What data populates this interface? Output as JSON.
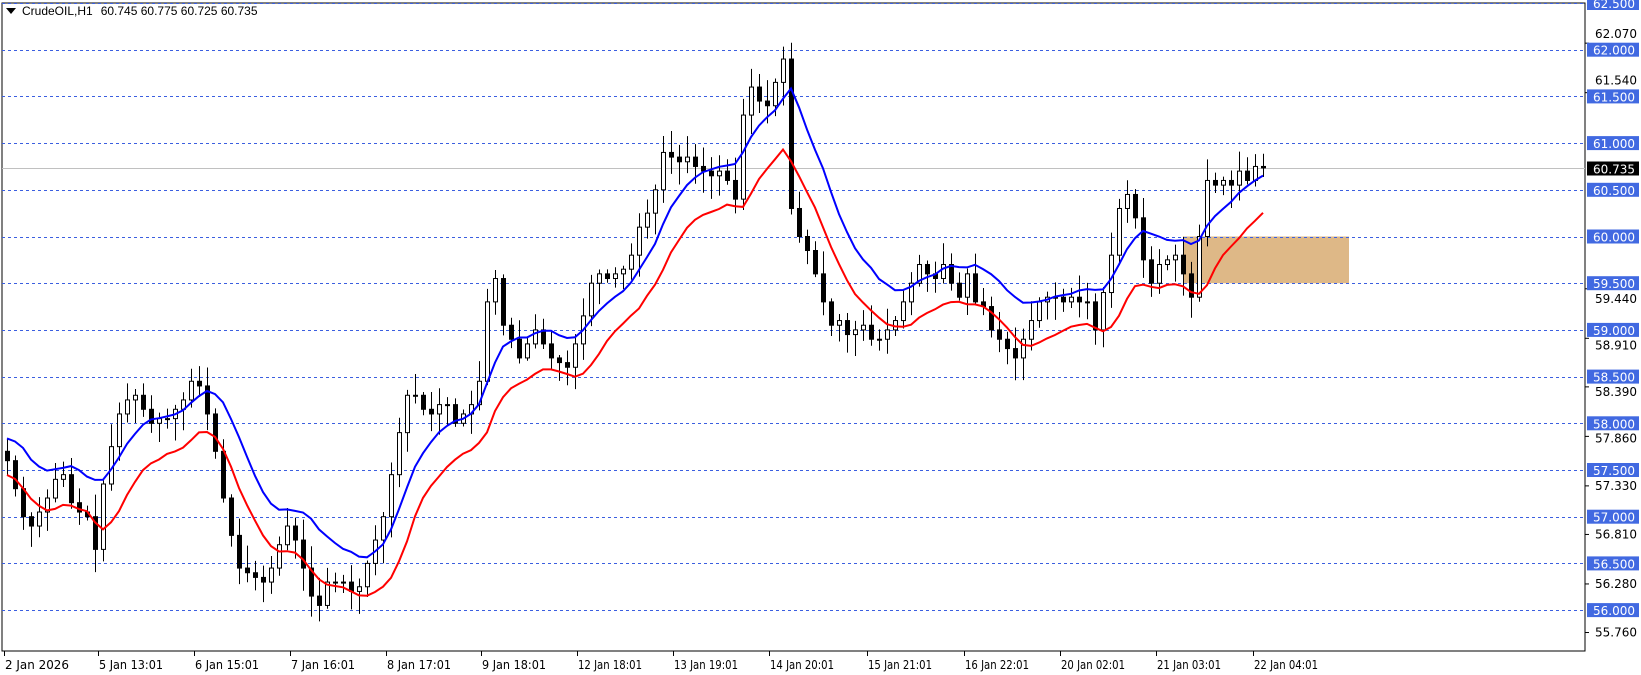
{
  "header": {
    "symbol": "CrudeOIL,H1",
    "ohlc_text": "60.745 60.775 60.725 60.735"
  },
  "colors": {
    "grid": "#3b5fe0",
    "level_label_bg": "#4169e1",
    "ma_fast": "#0000ff",
    "ma_slow": "#ff0000",
    "zone": "#deb887",
    "current_price_bg": "#000000",
    "price_line": "#c0c0c0"
  },
  "chart_data": {
    "type": "candlestick",
    "timeframe": "H1",
    "ylim": [
      55.7,
      62.5
    ],
    "level_lines": [
      "62.500",
      "62.000",
      "61.500",
      "61.000",
      "60.500",
      "60.000",
      "59.500",
      "59.000",
      "58.500",
      "58.000",
      "57.500",
      "57.000",
      "56.500",
      "56.000"
    ],
    "axis_ticks": [
      "62.070",
      "61.540",
      "59.440",
      "58.910",
      "58.390",
      "57.860",
      "57.330",
      "56.810",
      "56.280",
      "55.760"
    ],
    "current_price": "60.735",
    "x_tick_labels": [
      "2 Jan 2026",
      "5 Jan 13:01",
      "6 Jan 15:01",
      "7 Jan 16:01",
      "8 Jan 17:01",
      "9 Jan 18:01",
      "12 Jan 18:01",
      "13 Jan 19:01",
      "14 Jan 20:01",
      "15 Jan 21:01",
      "16 Jan 22:01",
      "20 Jan 02:01",
      "21 Jan 03:01",
      "22 Jan 04:01"
    ],
    "zone": {
      "from_price": 59.5,
      "to_price": 60.0
    },
    "moving_averages": [
      {
        "color": "#0000ff"
      },
      {
        "color": "#ff0000"
      }
    ],
    "closes": [
      57.6,
      57.3,
      57.0,
      56.9,
      57.05,
      57.2,
      57.4,
      57.45,
      57.15,
      57.05,
      57.0,
      56.65,
      57.35,
      57.75,
      58.1,
      58.25,
      58.3,
      58.15,
      58.0,
      58.05,
      58.05,
      58.15,
      58.25,
      58.45,
      58.4,
      58.1,
      57.7,
      57.2,
      56.8,
      56.45,
      56.4,
      56.35,
      56.3,
      56.45,
      56.7,
      56.9,
      56.75,
      56.45,
      56.15,
      56.05,
      56.3,
      56.3,
      56.3,
      56.2,
      56.25,
      56.5,
      56.75,
      57.0,
      57.45,
      57.9,
      58.3,
      58.3,
      58.15,
      58.1,
      58.2,
      58.2,
      58.0,
      58.1,
      58.2,
      58.45,
      59.3,
      59.55,
      59.05,
      58.9,
      58.7,
      58.85,
      59.0,
      58.85,
      58.7,
      58.65,
      58.6,
      58.85,
      59.15,
      59.5,
      59.6,
      59.55,
      59.6,
      59.65,
      59.8,
      60.1,
      60.25,
      60.5,
      60.9,
      60.85,
      60.8,
      60.85,
      60.75,
      60.7,
      60.65,
      60.7,
      60.6,
      60.4,
      61.3,
      61.6,
      61.45,
      61.4,
      61.65,
      61.9,
      60.3,
      60.0,
      59.85,
      59.6,
      59.3,
      59.05,
      59.1,
      58.95,
      59.0,
      59.05,
      58.9,
      58.9,
      59.0,
      59.1,
      59.3,
      59.5,
      59.7,
      59.6,
      59.55,
      59.7,
      59.5,
      59.35,
      59.6,
      59.3,
      59.25,
      59.0,
      58.9,
      58.8,
      58.7,
      58.9,
      59.1,
      59.3,
      59.35,
      59.35,
      59.3,
      59.35,
      59.3,
      59.3,
      59.0,
      59.4,
      59.8,
      60.3,
      60.45,
      60.2,
      59.75,
      59.5,
      59.7,
      59.75,
      59.8,
      59.6,
      59.35,
      60.0,
      60.6,
      60.55,
      60.6,
      60.55,
      60.7,
      60.6,
      60.75,
      60.735
    ]
  }
}
